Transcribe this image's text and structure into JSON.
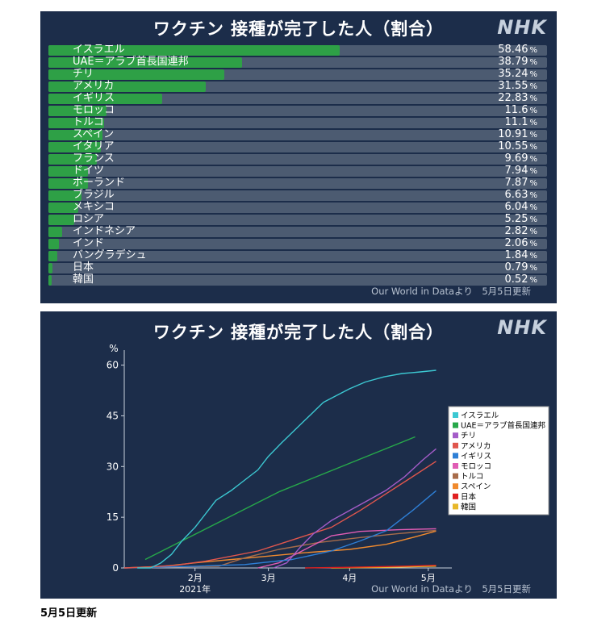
{
  "panel1": {
    "title": "ワクチン 接種が完了した人（割合）",
    "logo": "NHK",
    "source": "Our World in Dataより　5月5日更新",
    "percent_sign": "%"
  },
  "panel2": {
    "title": "ワクチン 接種が完了した人（割合）",
    "logo": "NHK",
    "source": "Our World in Dataより　5月5日更新"
  },
  "footnote": "5月5日更新",
  "colors": {
    "panel_bg": "#1c2d4a",
    "bar_fill": "#2ea046",
    "bar_track": "#4c5b71"
  },
  "chart_data": [
    {
      "type": "bar",
      "orientation": "horizontal",
      "title": "ワクチン 接種が完了した人（割合）",
      "categories": [
        "イスラエル",
        "UAE＝アラブ首長国連邦",
        "チリ",
        "アメリカ",
        "イギリス",
        "モロッコ",
        "トルコ",
        "スペイン",
        "イタリア",
        "フランス",
        "ドイツ",
        "ポーランド",
        "ブラジル",
        "メキシコ",
        "ロシア",
        "インドネシア",
        "インド",
        "バングラデシュ",
        "日本",
        "韓国"
      ],
      "values": [
        58.46,
        38.79,
        35.24,
        31.55,
        22.83,
        11.6,
        11.1,
        10.91,
        10.55,
        9.69,
        7.94,
        7.87,
        6.63,
        6.04,
        5.25,
        2.82,
        2.06,
        1.84,
        0.79,
        0.52
      ],
      "value_labels": [
        "58.46",
        "38.79",
        "35.24",
        "31.55",
        "22.83",
        "11.6",
        "11.1",
        "10.91",
        "10.55",
        "9.69",
        "7.94",
        "7.87",
        "6.63",
        "6.04",
        "5.25",
        "2.82",
        "2.06",
        "1.84",
        "0.79",
        "0.52"
      ],
      "xlim": [
        0,
        100
      ]
    },
    {
      "type": "line",
      "title": "ワクチン 接種が完了した人（割合）",
      "ylabel": "%",
      "ylim": [
        0,
        63
      ],
      "yticks": [
        0,
        15,
        30,
        45,
        60
      ],
      "xlim": [
        "2021-01-05",
        "2021-05-10"
      ],
      "xticks": [
        {
          "date": "2021-02-01",
          "label": "2月"
        },
        {
          "date": "2021-03-01",
          "label": "3月"
        },
        {
          "date": "2021-04-01",
          "label": "4月"
        },
        {
          "date": "2021-05-01",
          "label": "5月"
        }
      ],
      "year_label": "2021年",
      "grid": false,
      "legend_position": "right",
      "series": [
        {
          "name": "イスラエル",
          "color": "#3cc8d2",
          "points": [
            [
              "2021-01-10",
              0
            ],
            [
              "2021-01-15",
              0
            ],
            [
              "2021-01-19",
              1.5
            ],
            [
              "2021-01-23",
              4
            ],
            [
              "2021-01-27",
              8
            ],
            [
              "2021-02-01",
              12
            ],
            [
              "2021-02-05",
              16
            ],
            [
              "2021-02-09",
              20
            ],
            [
              "2021-02-15",
              23
            ],
            [
              "2021-02-20",
              26
            ],
            [
              "2021-02-25",
              29
            ],
            [
              "2021-03-01",
              33
            ],
            [
              "2021-03-06",
              37
            ],
            [
              "2021-03-10",
              40
            ],
            [
              "2021-03-14",
              43
            ],
            [
              "2021-03-18",
              46
            ],
            [
              "2021-03-22",
              49
            ],
            [
              "2021-03-27",
              51
            ],
            [
              "2021-04-01",
              53
            ],
            [
              "2021-04-07",
              55
            ],
            [
              "2021-04-14",
              56.5
            ],
            [
              "2021-04-21",
              57.5
            ],
            [
              "2021-04-28",
              58
            ],
            [
              "2021-05-04",
              58.46
            ]
          ]
        },
        {
          "name": "UAE＝アラブ首長国連邦",
          "color": "#27a84a",
          "points": [
            [
              "2021-01-13",
              2.5
            ],
            [
              "2021-03-05",
              22.5
            ],
            [
              "2021-04-26",
              38.79
            ]
          ]
        },
        {
          "name": "チリ",
          "color": "#a45cc8",
          "points": [
            [
              "2021-03-03",
              0
            ],
            [
              "2021-03-08",
              1.5
            ],
            [
              "2021-03-13",
              6
            ],
            [
              "2021-03-18",
              10
            ],
            [
              "2021-03-25",
              14
            ],
            [
              "2021-04-01",
              17
            ],
            [
              "2021-04-08",
              20
            ],
            [
              "2021-04-15",
              23
            ],
            [
              "2021-04-22",
              27
            ],
            [
              "2021-04-29",
              32
            ],
            [
              "2021-05-04",
              35.24
            ]
          ]
        },
        {
          "name": "アメリカ",
          "color": "#e0564d",
          "points": [
            [
              "2021-01-05",
              0
            ],
            [
              "2021-01-15",
              0.3
            ],
            [
              "2021-01-25",
              0.8
            ],
            [
              "2021-02-05",
              2
            ],
            [
              "2021-02-15",
              3.5
            ],
            [
              "2021-02-25",
              5
            ],
            [
              "2021-03-05",
              7
            ],
            [
              "2021-03-15",
              9.5
            ],
            [
              "2021-03-25",
              12
            ],
            [
              "2021-04-05",
              17
            ],
            [
              "2021-04-15",
              22
            ],
            [
              "2021-04-25",
              27
            ],
            [
              "2021-05-04",
              31.55
            ]
          ]
        },
        {
          "name": "イギリス",
          "color": "#2e7fd6",
          "points": [
            [
              "2021-01-05",
              0
            ],
            [
              "2021-02-01",
              0.5
            ],
            [
              "2021-02-20",
              1
            ],
            [
              "2021-03-10",
              2.5
            ],
            [
              "2021-03-25",
              5
            ],
            [
              "2021-04-05",
              8
            ],
            [
              "2021-04-15",
              11
            ],
            [
              "2021-04-25",
              17
            ],
            [
              "2021-05-04",
              22.83
            ]
          ]
        },
        {
          "name": "モロッコ",
          "color": "#e05cb4",
          "points": [
            [
              "2021-02-25",
              0
            ],
            [
              "2021-03-05",
              1.5
            ],
            [
              "2021-03-15",
              5.5
            ],
            [
              "2021-03-25",
              9.5
            ],
            [
              "2021-04-05",
              10.8
            ],
            [
              "2021-04-20",
              11.3
            ],
            [
              "2021-05-04",
              11.6
            ]
          ]
        },
        {
          "name": "トルコ",
          "color": "#a86c4a",
          "points": [
            [
              "2021-01-05",
              0
            ],
            [
              "2021-02-10",
              0.5
            ],
            [
              "2021-02-20",
              3
            ],
            [
              "2021-03-05",
              5.5
            ],
            [
              "2021-03-20",
              7.5
            ],
            [
              "2021-04-05",
              9
            ],
            [
              "2021-04-20",
              10.2
            ],
            [
              "2021-05-04",
              11.1
            ]
          ]
        },
        {
          "name": "スペイン",
          "color": "#f08a2e",
          "points": [
            [
              "2021-01-05",
              0
            ],
            [
              "2021-01-20",
              0.5
            ],
            [
              "2021-02-01",
              1.5
            ],
            [
              "2021-02-15",
              2.5
            ],
            [
              "2021-03-01",
              3.5
            ],
            [
              "2021-03-15",
              4.5
            ],
            [
              "2021-04-01",
              5.5
            ],
            [
              "2021-04-15",
              7
            ],
            [
              "2021-04-25",
              9
            ],
            [
              "2021-05-04",
              10.91
            ]
          ]
        },
        {
          "name": "日本",
          "color": "#e02020",
          "points": [
            [
              "2021-03-15",
              0
            ],
            [
              "2021-04-01",
              0.2
            ],
            [
              "2021-04-20",
              0.5
            ],
            [
              "2021-05-04",
              0.79
            ]
          ]
        },
        {
          "name": "韓国",
          "color": "#e8b82a",
          "points": [
            [
              "2021-03-25",
              0
            ],
            [
              "2021-04-15",
              0.2
            ],
            [
              "2021-05-04",
              0.52
            ]
          ]
        }
      ]
    }
  ]
}
